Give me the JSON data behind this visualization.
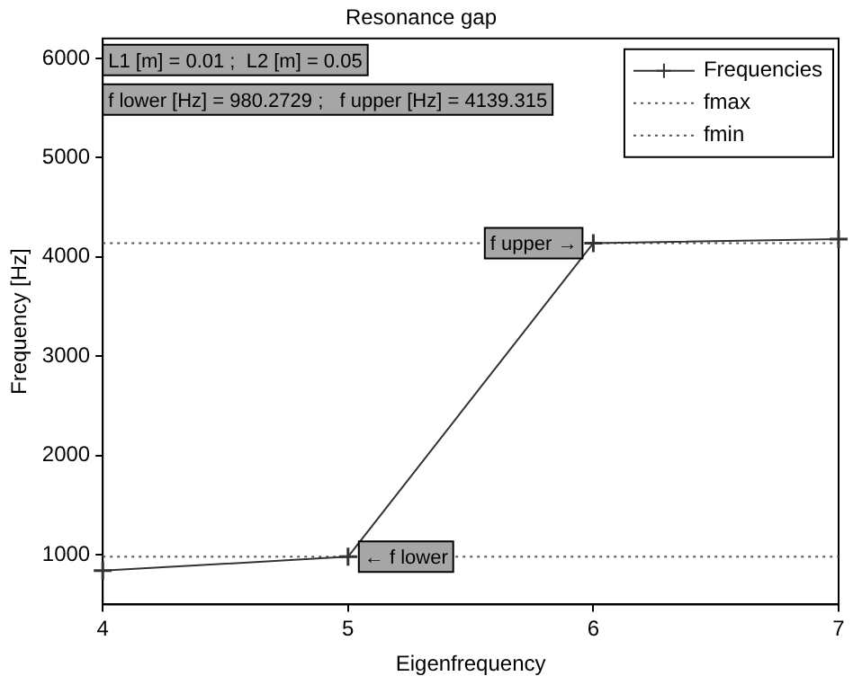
{
  "chart_data": {
    "type": "line",
    "title": "Resonance gap",
    "xlabel": "Eigenfrequency",
    "ylabel": "Frequency [Hz]",
    "x": [
      4,
      5,
      6,
      7
    ],
    "series": [
      {
        "name": "Frequencies",
        "color": "#333333",
        "values": [
          840,
          980.2729,
          4139.315,
          4180
        ],
        "marker": "cross",
        "line_style": "solid"
      },
      {
        "name": "fmax",
        "color": "#555555",
        "values": [
          4139.315,
          4139.315,
          4139.315,
          4139.315
        ],
        "marker": "none",
        "line_style": "dotted"
      },
      {
        "name": "fmin",
        "color": "#555555",
        "values": [
          980.2729,
          980.2729,
          980.2729,
          980.2729
        ],
        "marker": "none",
        "line_style": "dotted"
      }
    ],
    "xlim": [
      4,
      7
    ],
    "xticks": [
      4,
      5,
      6,
      7
    ],
    "ylim": [
      500,
      6200
    ],
    "yticks": [
      1000,
      2000,
      3000,
      4000,
      5000,
      6000
    ],
    "grid": false,
    "legend": "top right",
    "annotations": [
      "L1 [m] = 0.01 ;  L2 [m] = 0.05",
      "f lower [Hz] = 980.2729 ;   f upper [Hz] = 4139.315",
      {
        "text": "f upper →",
        "x": 6,
        "y": 4139.315
      },
      {
        "text": "← f lower",
        "x": 5,
        "y": 980.2729
      }
    ]
  }
}
